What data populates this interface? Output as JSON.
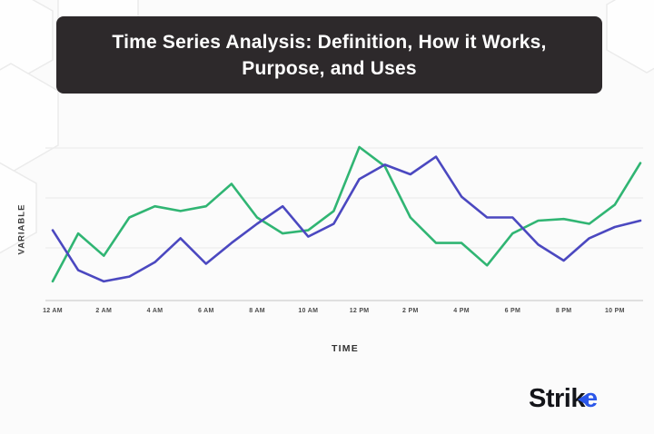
{
  "banner": {
    "title_lines": [
      "Time Series Analysis: Definition, How it Works,",
      "Purpose, and Uses"
    ],
    "bg": "#2d292b",
    "text_color": "#ffffff"
  },
  "chart_data": {
    "type": "line",
    "x": [
      "12 AM",
      "1 AM",
      "2 AM",
      "3 AM",
      "4 AM",
      "5 AM",
      "6 AM",
      "7 AM",
      "8 AM",
      "9 AM",
      "10 AM",
      "11 AM",
      "12 PM",
      "1 PM",
      "2 PM",
      "3 PM",
      "4 PM",
      "5 PM",
      "6 PM",
      "7 PM",
      "8 PM",
      "9 PM",
      "10 PM",
      "11 PM"
    ],
    "tick_labels": [
      "12 AM",
      "2 AM",
      "4 AM",
      "6 AM",
      "8 AM",
      "10 AM",
      "12 PM",
      "2 PM",
      "4 PM",
      "6 PM",
      "8 PM",
      "10 PM"
    ],
    "xlabel": "TIME",
    "ylabel": "VARIABLE",
    "ylim": [
      0,
      100
    ],
    "grid": true,
    "legend": "none",
    "series": [
      {
        "name": "green-series",
        "color": "#30b573",
        "values": [
          12,
          42,
          28,
          52,
          59,
          56,
          59,
          73,
          52,
          42,
          44,
          56,
          96,
          84,
          52,
          36,
          36,
          22,
          42,
          50,
          51,
          48,
          60,
          86
        ]
      },
      {
        "name": "blue-series",
        "color": "#4b48c0",
        "values": [
          44,
          19,
          12,
          15,
          24,
          39,
          23,
          36,
          48,
          59,
          40,
          48,
          76,
          85,
          79,
          90,
          65,
          52,
          52,
          35,
          25,
          39,
          46,
          50
        ]
      }
    ]
  },
  "logo": {
    "prefix": "Stri",
    "k": "k",
    "suffix": "e",
    "black": "#14151a",
    "blue": "#2b57e9"
  },
  "colors": {
    "background": "#fbfbfb",
    "banner_bg": "#2d292b",
    "grid_line": "#ececec",
    "axis_line": "#d7d7d7",
    "tick_text": "#4c4c4c",
    "label_text": "#3c3c3c"
  }
}
